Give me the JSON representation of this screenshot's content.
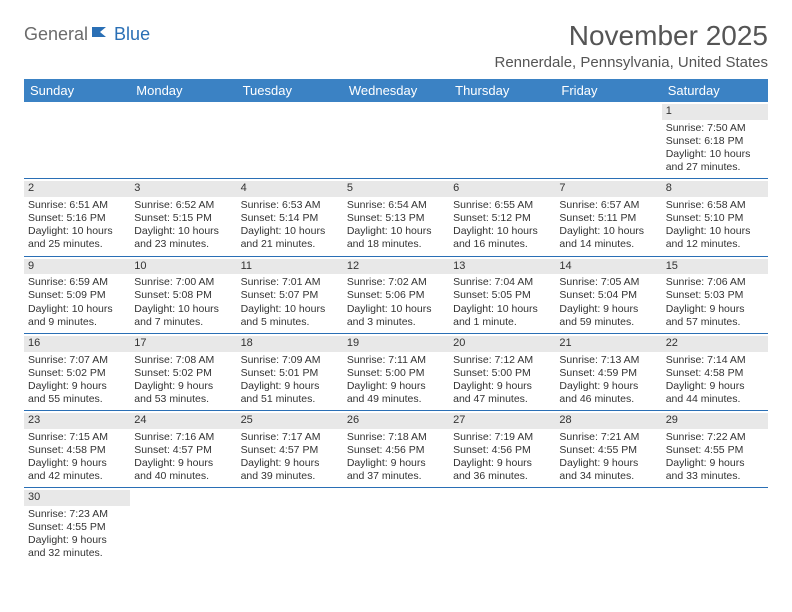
{
  "logo": {
    "part1": "General",
    "part2": "Blue"
  },
  "title": "November 2025",
  "location": "Rennerdale, Pennsylvania, United States",
  "colors": {
    "header_bg": "#3b82c4",
    "header_text": "#ffffff",
    "daynum_bg": "#e8e8e8",
    "row_border": "#2a6fb5",
    "text": "#333333",
    "title_text": "#555555"
  },
  "day_names": [
    "Sunday",
    "Monday",
    "Tuesday",
    "Wednesday",
    "Thursday",
    "Friday",
    "Saturday"
  ],
  "weeks": [
    [
      null,
      null,
      null,
      null,
      null,
      null,
      {
        "d": "1",
        "sr": "Sunrise: 7:50 AM",
        "ss": "Sunset: 6:18 PM",
        "dl1": "Daylight: 10 hours",
        "dl2": "and 27 minutes."
      }
    ],
    [
      {
        "d": "2",
        "sr": "Sunrise: 6:51 AM",
        "ss": "Sunset: 5:16 PM",
        "dl1": "Daylight: 10 hours",
        "dl2": "and 25 minutes."
      },
      {
        "d": "3",
        "sr": "Sunrise: 6:52 AM",
        "ss": "Sunset: 5:15 PM",
        "dl1": "Daylight: 10 hours",
        "dl2": "and 23 minutes."
      },
      {
        "d": "4",
        "sr": "Sunrise: 6:53 AM",
        "ss": "Sunset: 5:14 PM",
        "dl1": "Daylight: 10 hours",
        "dl2": "and 21 minutes."
      },
      {
        "d": "5",
        "sr": "Sunrise: 6:54 AM",
        "ss": "Sunset: 5:13 PM",
        "dl1": "Daylight: 10 hours",
        "dl2": "and 18 minutes."
      },
      {
        "d": "6",
        "sr": "Sunrise: 6:55 AM",
        "ss": "Sunset: 5:12 PM",
        "dl1": "Daylight: 10 hours",
        "dl2": "and 16 minutes."
      },
      {
        "d": "7",
        "sr": "Sunrise: 6:57 AM",
        "ss": "Sunset: 5:11 PM",
        "dl1": "Daylight: 10 hours",
        "dl2": "and 14 minutes."
      },
      {
        "d": "8",
        "sr": "Sunrise: 6:58 AM",
        "ss": "Sunset: 5:10 PM",
        "dl1": "Daylight: 10 hours",
        "dl2": "and 12 minutes."
      }
    ],
    [
      {
        "d": "9",
        "sr": "Sunrise: 6:59 AM",
        "ss": "Sunset: 5:09 PM",
        "dl1": "Daylight: 10 hours",
        "dl2": "and 9 minutes."
      },
      {
        "d": "10",
        "sr": "Sunrise: 7:00 AM",
        "ss": "Sunset: 5:08 PM",
        "dl1": "Daylight: 10 hours",
        "dl2": "and 7 minutes."
      },
      {
        "d": "11",
        "sr": "Sunrise: 7:01 AM",
        "ss": "Sunset: 5:07 PM",
        "dl1": "Daylight: 10 hours",
        "dl2": "and 5 minutes."
      },
      {
        "d": "12",
        "sr": "Sunrise: 7:02 AM",
        "ss": "Sunset: 5:06 PM",
        "dl1": "Daylight: 10 hours",
        "dl2": "and 3 minutes."
      },
      {
        "d": "13",
        "sr": "Sunrise: 7:04 AM",
        "ss": "Sunset: 5:05 PM",
        "dl1": "Daylight: 10 hours",
        "dl2": "and 1 minute."
      },
      {
        "d": "14",
        "sr": "Sunrise: 7:05 AM",
        "ss": "Sunset: 5:04 PM",
        "dl1": "Daylight: 9 hours",
        "dl2": "and 59 minutes."
      },
      {
        "d": "15",
        "sr": "Sunrise: 7:06 AM",
        "ss": "Sunset: 5:03 PM",
        "dl1": "Daylight: 9 hours",
        "dl2": "and 57 minutes."
      }
    ],
    [
      {
        "d": "16",
        "sr": "Sunrise: 7:07 AM",
        "ss": "Sunset: 5:02 PM",
        "dl1": "Daylight: 9 hours",
        "dl2": "and 55 minutes."
      },
      {
        "d": "17",
        "sr": "Sunrise: 7:08 AM",
        "ss": "Sunset: 5:02 PM",
        "dl1": "Daylight: 9 hours",
        "dl2": "and 53 minutes."
      },
      {
        "d": "18",
        "sr": "Sunrise: 7:09 AM",
        "ss": "Sunset: 5:01 PM",
        "dl1": "Daylight: 9 hours",
        "dl2": "and 51 minutes."
      },
      {
        "d": "19",
        "sr": "Sunrise: 7:11 AM",
        "ss": "Sunset: 5:00 PM",
        "dl1": "Daylight: 9 hours",
        "dl2": "and 49 minutes."
      },
      {
        "d": "20",
        "sr": "Sunrise: 7:12 AM",
        "ss": "Sunset: 5:00 PM",
        "dl1": "Daylight: 9 hours",
        "dl2": "and 47 minutes."
      },
      {
        "d": "21",
        "sr": "Sunrise: 7:13 AM",
        "ss": "Sunset: 4:59 PM",
        "dl1": "Daylight: 9 hours",
        "dl2": "and 46 minutes."
      },
      {
        "d": "22",
        "sr": "Sunrise: 7:14 AM",
        "ss": "Sunset: 4:58 PM",
        "dl1": "Daylight: 9 hours",
        "dl2": "and 44 minutes."
      }
    ],
    [
      {
        "d": "23",
        "sr": "Sunrise: 7:15 AM",
        "ss": "Sunset: 4:58 PM",
        "dl1": "Daylight: 9 hours",
        "dl2": "and 42 minutes."
      },
      {
        "d": "24",
        "sr": "Sunrise: 7:16 AM",
        "ss": "Sunset: 4:57 PM",
        "dl1": "Daylight: 9 hours",
        "dl2": "and 40 minutes."
      },
      {
        "d": "25",
        "sr": "Sunrise: 7:17 AM",
        "ss": "Sunset: 4:57 PM",
        "dl1": "Daylight: 9 hours",
        "dl2": "and 39 minutes."
      },
      {
        "d": "26",
        "sr": "Sunrise: 7:18 AM",
        "ss": "Sunset: 4:56 PM",
        "dl1": "Daylight: 9 hours",
        "dl2": "and 37 minutes."
      },
      {
        "d": "27",
        "sr": "Sunrise: 7:19 AM",
        "ss": "Sunset: 4:56 PM",
        "dl1": "Daylight: 9 hours",
        "dl2": "and 36 minutes."
      },
      {
        "d": "28",
        "sr": "Sunrise: 7:21 AM",
        "ss": "Sunset: 4:55 PM",
        "dl1": "Daylight: 9 hours",
        "dl2": "and 34 minutes."
      },
      {
        "d": "29",
        "sr": "Sunrise: 7:22 AM",
        "ss": "Sunset: 4:55 PM",
        "dl1": "Daylight: 9 hours",
        "dl2": "and 33 minutes."
      }
    ],
    [
      {
        "d": "30",
        "sr": "Sunrise: 7:23 AM",
        "ss": "Sunset: 4:55 PM",
        "dl1": "Daylight: 9 hours",
        "dl2": "and 32 minutes."
      },
      null,
      null,
      null,
      null,
      null,
      null
    ]
  ]
}
